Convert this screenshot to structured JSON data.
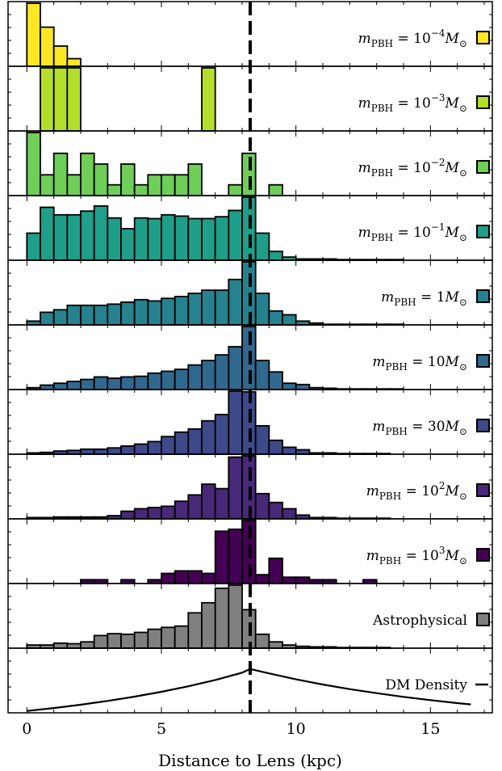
{
  "chart_data": {
    "type": "bar",
    "xlabel": "Distance to Lens (kpc)",
    "xlim": [
      -0.7,
      17.3
    ],
    "xticks": [
      0,
      5,
      10,
      15
    ],
    "xtick_labels": [
      "0",
      "5",
      "10",
      "15"
    ],
    "bin_width": 0.5,
    "reference_line_x": 8.3,
    "panels": [
      {
        "name": "m_PBH = 10^-4 M_sun",
        "label": {
          "lhs": "m",
          "sub": "PBH",
          "rel": " = ",
          "mant": "10",
          "sup": "−4",
          "unit": "M",
          "usub": "⊙"
        },
        "color": "#fde725",
        "bins": [
          [
            0.0,
            1.0
          ],
          [
            0.5,
            0.62
          ],
          [
            1.0,
            0.32
          ],
          [
            1.5,
            0.12
          ]
        ]
      },
      {
        "name": "m_PBH = 10^-3 M_sun",
        "label": {
          "lhs": "m",
          "sub": "PBH",
          "rel": " = ",
          "mant": "10",
          "sup": "−3",
          "unit": "M",
          "usub": "⊙"
        },
        "color": "#b5de2b",
        "bins": [
          [
            0.5,
            1.0
          ],
          [
            1.0,
            1.0
          ],
          [
            1.5,
            1.0
          ],
          [
            6.5,
            1.0
          ]
        ]
      },
      {
        "name": "m_PBH = 10^-2 M_sun",
        "label": {
          "lhs": "m",
          "sub": "PBH",
          "rel": " = ",
          "mant": "10",
          "sup": "−2",
          "unit": "M",
          "usub": "⊙"
        },
        "color": "#6ece58",
        "bins": [
          [
            0.0,
            1.0
          ],
          [
            0.5,
            0.33
          ],
          [
            1.0,
            0.67
          ],
          [
            1.5,
            0.33
          ],
          [
            2.0,
            0.67
          ],
          [
            2.5,
            0.5
          ],
          [
            3.0,
            0.17
          ],
          [
            3.5,
            0.5
          ],
          [
            4.0,
            0.17
          ],
          [
            4.5,
            0.33
          ],
          [
            5.0,
            0.33
          ],
          [
            5.5,
            0.33
          ],
          [
            6.0,
            0.5
          ],
          [
            6.5,
            0.0
          ],
          [
            7.5,
            0.17
          ],
          [
            8.0,
            0.67
          ],
          [
            9.0,
            0.17
          ]
        ]
      },
      {
        "name": "m_PBH = 10^-1 M_sun",
        "label": {
          "lhs": "m",
          "sub": "PBH",
          "rel": " = ",
          "mant": "10",
          "sup": "−1",
          "unit": "M",
          "usub": "⊙"
        },
        "color": "#1f9e89",
        "bins": [
          [
            0.0,
            0.43
          ],
          [
            0.5,
            0.84
          ],
          [
            1.0,
            0.72
          ],
          [
            1.5,
            0.72
          ],
          [
            2.0,
            0.78
          ],
          [
            2.5,
            0.86
          ],
          [
            3.0,
            0.67
          ],
          [
            3.5,
            0.5
          ],
          [
            4.0,
            0.67
          ],
          [
            4.5,
            0.66
          ],
          [
            5.0,
            0.72
          ],
          [
            5.5,
            0.7
          ],
          [
            6.0,
            0.66
          ],
          [
            6.5,
            0.66
          ],
          [
            7.0,
            0.69
          ],
          [
            7.5,
            0.79
          ],
          [
            8.0,
            1.0
          ],
          [
            8.5,
            0.43
          ],
          [
            9.0,
            0.14
          ],
          [
            9.5,
            0.05
          ],
          [
            10.0,
            0.02
          ],
          [
            10.5,
            0.02
          ],
          [
            11.0,
            0.02
          ],
          [
            11.5,
            0.01
          ],
          [
            12.0,
            0.01
          ],
          [
            12.5,
            0.01
          ],
          [
            13.0,
            0.01
          ],
          [
            13.5,
            0.01
          ]
        ]
      },
      {
        "name": "m_PBH = 1 M_sun",
        "label": {
          "lhs": "m",
          "sub": "PBH",
          "rel": " = ",
          "mant": "1",
          "sup": "",
          "unit": "M",
          "usub": "⊙"
        },
        "color": "#26828e",
        "bins": [
          [
            0.0,
            0.06
          ],
          [
            0.5,
            0.2
          ],
          [
            1.0,
            0.24
          ],
          [
            1.5,
            0.31
          ],
          [
            2.0,
            0.31
          ],
          [
            2.5,
            0.31
          ],
          [
            3.0,
            0.33
          ],
          [
            3.5,
            0.36
          ],
          [
            4.0,
            0.4
          ],
          [
            4.5,
            0.38
          ],
          [
            5.0,
            0.42
          ],
          [
            5.5,
            0.45
          ],
          [
            6.0,
            0.5
          ],
          [
            6.5,
            0.55
          ],
          [
            7.0,
            0.55
          ],
          [
            7.5,
            0.72
          ],
          [
            8.0,
            1.0
          ],
          [
            8.5,
            0.5
          ],
          [
            9.0,
            0.22
          ],
          [
            9.5,
            0.16
          ],
          [
            10.0,
            0.06
          ],
          [
            10.5,
            0.03
          ],
          [
            11.0,
            0.01
          ],
          [
            11.5,
            0.01
          ],
          [
            12.0,
            0.01
          ],
          [
            12.5,
            0.01
          ],
          [
            13.0,
            0.01
          ],
          [
            13.5,
            0.01
          ]
        ]
      },
      {
        "name": "m_PBH = 10 M_sun",
        "label": {
          "lhs": "m",
          "sub": "PBH",
          "rel": " = ",
          "mant": "10",
          "sup": "",
          "unit": "M",
          "usub": "⊙"
        },
        "color": "#31688e",
        "bins": [
          [
            0.0,
            0.03
          ],
          [
            0.5,
            0.07
          ],
          [
            1.0,
            0.1
          ],
          [
            1.5,
            0.13
          ],
          [
            2.0,
            0.16
          ],
          [
            2.5,
            0.2
          ],
          [
            3.0,
            0.18
          ],
          [
            3.5,
            0.2
          ],
          [
            4.0,
            0.21
          ],
          [
            4.5,
            0.26
          ],
          [
            5.0,
            0.29
          ],
          [
            5.5,
            0.32
          ],
          [
            6.0,
            0.39
          ],
          [
            6.5,
            0.46
          ],
          [
            7.0,
            0.55
          ],
          [
            7.5,
            0.68
          ],
          [
            8.0,
            1.0
          ],
          [
            8.5,
            0.46
          ],
          [
            9.0,
            0.28
          ],
          [
            9.5,
            0.1
          ],
          [
            10.0,
            0.08
          ],
          [
            10.5,
            0.03
          ],
          [
            11.0,
            0.02
          ],
          [
            11.5,
            0.01
          ],
          [
            12.0,
            0.01
          ],
          [
            12.5,
            0.01
          ],
          [
            13.0,
            0.01
          ],
          [
            13.5,
            0.01
          ]
        ]
      },
      {
        "name": "m_PBH = 30 M_sun",
        "label": {
          "lhs": "m",
          "sub": "PBH",
          "rel": " = ",
          "mant": "30",
          "sup": "",
          "unit": "M",
          "usub": "⊙"
        },
        "color": "#3e4989",
        "bins": [
          [
            0.0,
            0.02
          ],
          [
            0.5,
            0.03
          ],
          [
            1.0,
            0.05
          ],
          [
            1.5,
            0.06
          ],
          [
            2.0,
            0.08
          ],
          [
            2.5,
            0.08
          ],
          [
            3.0,
            0.1
          ],
          [
            3.5,
            0.13
          ],
          [
            4.0,
            0.16
          ],
          [
            4.5,
            0.2
          ],
          [
            5.0,
            0.28
          ],
          [
            5.5,
            0.35
          ],
          [
            6.0,
            0.4
          ],
          [
            6.5,
            0.53
          ],
          [
            7.0,
            0.63
          ],
          [
            7.5,
            1.0
          ],
          [
            8.0,
            0.99
          ],
          [
            8.5,
            0.45
          ],
          [
            9.0,
            0.22
          ],
          [
            9.5,
            0.11
          ],
          [
            10.0,
            0.07
          ],
          [
            10.5,
            0.02
          ],
          [
            11.0,
            0.02
          ],
          [
            11.5,
            0.01
          ],
          [
            12.0,
            0.01
          ],
          [
            12.5,
            0.01
          ],
          [
            13.0,
            0.01
          ]
        ]
      },
      {
        "name": "m_PBH = 10^2 M_sun",
        "label": {
          "lhs": "m",
          "sub": "PBH",
          "rel": " = ",
          "mant": "10",
          "sup": "2",
          "unit": "M",
          "usub": "⊙"
        },
        "color": "#482878",
        "bins": [
          [
            0.0,
            0.02
          ],
          [
            0.5,
            0.02
          ],
          [
            1.0,
            0.03
          ],
          [
            1.5,
            0.03
          ],
          [
            2.0,
            0.03
          ],
          [
            2.5,
            0.03
          ],
          [
            3.0,
            0.05
          ],
          [
            3.5,
            0.12
          ],
          [
            4.0,
            0.16
          ],
          [
            4.5,
            0.18
          ],
          [
            5.0,
            0.2
          ],
          [
            5.5,
            0.28
          ],
          [
            6.0,
            0.38
          ],
          [
            6.5,
            0.55
          ],
          [
            7.0,
            0.48
          ],
          [
            7.5,
            0.98
          ],
          [
            8.0,
            1.0
          ],
          [
            8.5,
            0.4
          ],
          [
            9.0,
            0.26
          ],
          [
            9.5,
            0.16
          ],
          [
            10.0,
            0.06
          ],
          [
            10.5,
            0.02
          ],
          [
            11.0,
            0.02
          ],
          [
            11.5,
            0.01
          ],
          [
            12.0,
            0.01
          ],
          [
            12.5,
            0.01
          ],
          [
            13.0,
            0.01
          ]
        ]
      },
      {
        "name": "m_PBH = 10^3 M_sun",
        "label": {
          "lhs": "m",
          "sub": "PBH",
          "rel": " = ",
          "mant": "10",
          "sup": "3",
          "unit": "M",
          "usub": "⊙"
        },
        "color": "#440154",
        "bins": [
          [
            2.0,
            0.06
          ],
          [
            2.5,
            0.06
          ],
          [
            3.5,
            0.06
          ],
          [
            4.5,
            0.06
          ],
          [
            5.0,
            0.16
          ],
          [
            5.5,
            0.2
          ],
          [
            6.0,
            0.2
          ],
          [
            6.5,
            0.16
          ],
          [
            7.0,
            0.83
          ],
          [
            7.5,
            0.86
          ],
          [
            8.0,
            1.0
          ],
          [
            8.5,
            0.14
          ],
          [
            9.0,
            0.4
          ],
          [
            9.5,
            0.1
          ],
          [
            10.0,
            0.1
          ],
          [
            10.5,
            0.06
          ],
          [
            11.0,
            0.06
          ],
          [
            12.5,
            0.06
          ]
        ]
      },
      {
        "name": "Astrophysical",
        "label": {
          "lhs": "Astrophysical"
        },
        "color": "#808080",
        "bins": [
          [
            0.0,
            0.05
          ],
          [
            0.5,
            0.05
          ],
          [
            1.0,
            0.08
          ],
          [
            1.5,
            0.07
          ],
          [
            2.0,
            0.1
          ],
          [
            2.5,
            0.2
          ],
          [
            3.0,
            0.23
          ],
          [
            3.5,
            0.22
          ],
          [
            4.0,
            0.25
          ],
          [
            4.5,
            0.3
          ],
          [
            5.0,
            0.33
          ],
          [
            5.5,
            0.35
          ],
          [
            6.0,
            0.56
          ],
          [
            6.5,
            0.72
          ],
          [
            7.0,
            0.95
          ],
          [
            7.5,
            1.0
          ],
          [
            8.0,
            0.61
          ],
          [
            8.5,
            0.22
          ],
          [
            9.0,
            0.1
          ],
          [
            9.5,
            0.05
          ],
          [
            10.0,
            0.03
          ],
          [
            10.5,
            0.02
          ],
          [
            11.0,
            0.02
          ],
          [
            11.5,
            0.01
          ],
          [
            12.0,
            0.01
          ],
          [
            12.5,
            0.01
          ],
          [
            13.0,
            0.01
          ]
        ]
      },
      {
        "name": "DM Density",
        "label": {
          "lhs": "DM Density"
        },
        "color": "#000000",
        "type": "line",
        "x": [
          0,
          1,
          2,
          3,
          4,
          5,
          6,
          7,
          8,
          8.3,
          9,
          10,
          11,
          12,
          13,
          14,
          15,
          16,
          16.5
        ],
        "y": [
          0.03,
          0.076,
          0.128,
          0.188,
          0.256,
          0.333,
          0.421,
          0.521,
          0.637,
          0.695,
          0.626,
          0.531,
          0.449,
          0.376,
          0.311,
          0.253,
          0.201,
          0.154,
          0.133
        ]
      }
    ]
  }
}
